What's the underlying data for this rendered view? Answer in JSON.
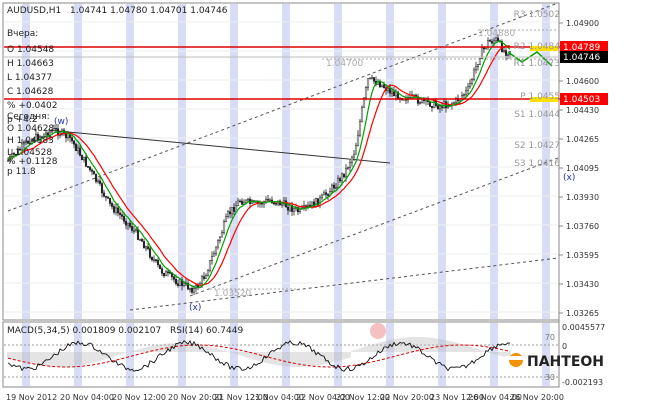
{
  "header": {
    "symbol": "AUDUSD,H1",
    "ohlc": "1.04741 1.04780 1.04701 1.04746"
  },
  "yesterday": {
    "title": "Вчера:",
    "o": "O 1.04548",
    "h": "H 1.04663",
    "l": "L 1.04377",
    "c": "C 1.04628",
    "pct": "% +0.0402",
    "p": "p +4.2"
  },
  "today": {
    "title": "Сегодня:",
    "o": "O 1.04628",
    "h": "H 1.04883",
    "l": "L 1.04528",
    "c": "C 1.04746",
    "pct": "% +0.1128",
    "p": "p 11.8"
  },
  "level_labels": {
    "r3": "R3 1.0502",
    "r2": "R2 1.0484",
    "r1": "R1 1.0473",
    "p": "P 1.0455",
    "s1": "S1 1.0444",
    "s2": "S2 1.0427",
    "s3": "S3 1.0416",
    "h_line": "1.04880",
    "mid_line": "1.04700",
    "low_line": "1.03520"
  },
  "price_axis": [
    "1.04900",
    "1.04760",
    "1.04600",
    "1.04430",
    "1.04265",
    "1.04095",
    "1.03930",
    "1.03760",
    "1.03595",
    "1.03430",
    "1.03265"
  ],
  "price_tags": {
    "red_top": "1.04789",
    "current": "1.04746",
    "red_bottom": "1.04503"
  },
  "time_axis": [
    "19 Nov 2012",
    "20 Nov 04:00",
    "20 Nov 12:00",
    "20 Nov 20:00",
    "21 Nov 12:00",
    "21 Nov 04:00",
    "22 Nov 04:00",
    "22 Nov 12:00",
    "22 Nov 20:00",
    "23 Nov 12:00",
    "26 Nov 04:00",
    "26 Nov 20:00"
  ],
  "wave_labels": {
    "w": "(w)",
    "x_low": "(x)",
    "x_right": "(x)"
  },
  "indicator": {
    "macd": "MACD(5,34,5) 0.001809 0.002107",
    "rsi": "RSI(14) 60.7449",
    "rsi_70": "70",
    "rsi_30": "30",
    "axis_top": "0.0045577",
    "axis_zero": "0",
    "axis_bottom": "-0.002193"
  },
  "brand": {
    "name": "ПАНТЕОН"
  },
  "colors": {
    "red_line": "#e00000",
    "yellow": "#ffe000",
    "ma_red": "#ff0000",
    "ma_green": "#00a000",
    "blue_band": "#c8cdf0",
    "brand_orange": "#f39200"
  }
}
